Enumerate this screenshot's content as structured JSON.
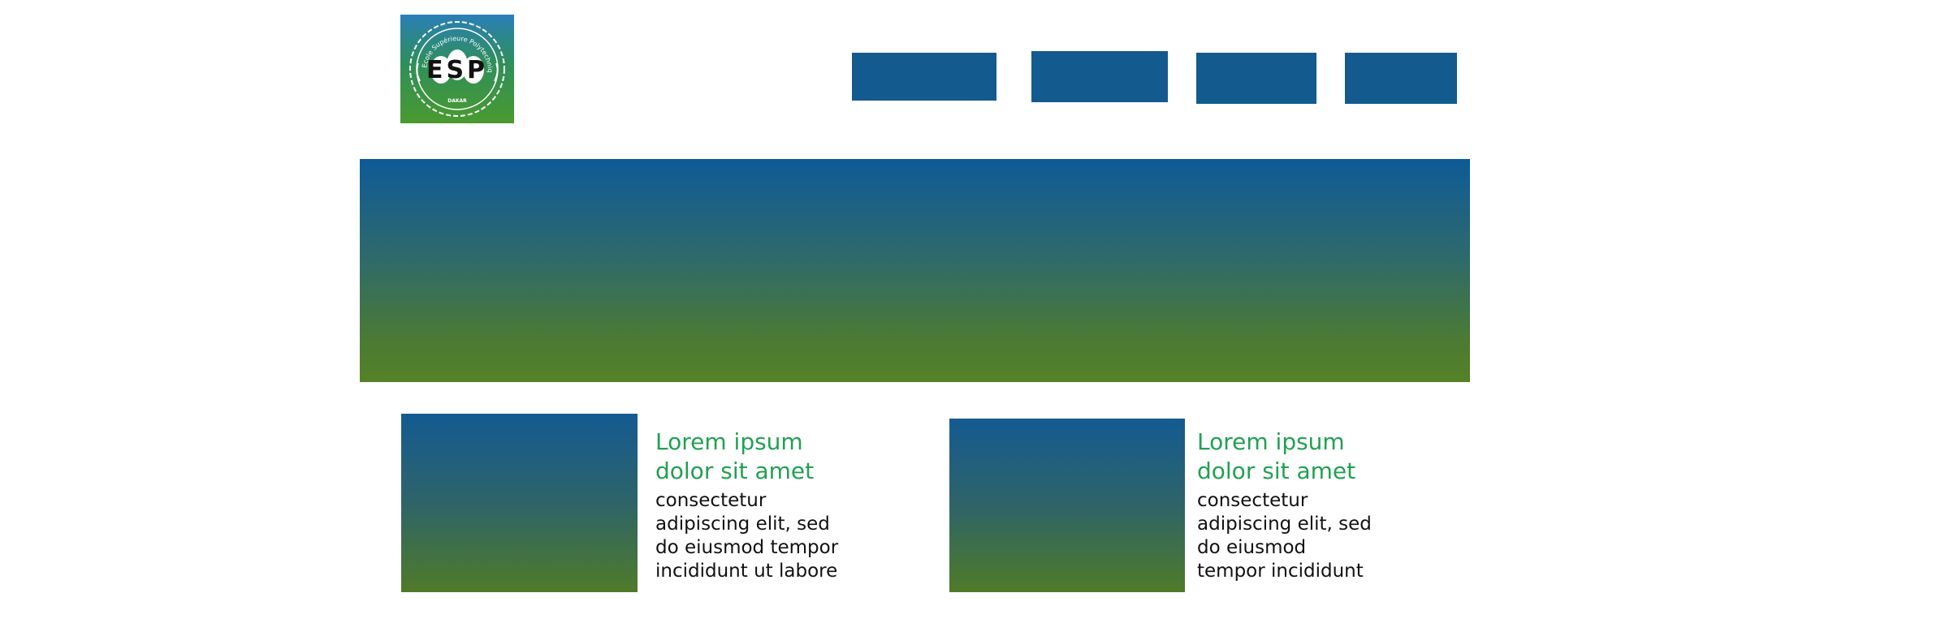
{
  "logo": {
    "letters": "ESP",
    "arc_text": "Ecole Supérieure Polytechnique",
    "city": "DAKAR"
  },
  "nav": {
    "items": [
      {
        "label": ""
      },
      {
        "label": ""
      },
      {
        "label": ""
      },
      {
        "label": ""
      }
    ]
  },
  "cards": [
    {
      "title": "Lorem ipsum\ndolor sit amet",
      "body": " consectetur\nadipiscing elit, sed\ndo eiusmod tempor\nincididunt ut labore"
    },
    {
      "title": "Lorem ipsum\ndolor sit amet",
      "body": " consectetur\nadipiscing elit, sed\ndo eiusmod\ntempor incididunt"
    }
  ],
  "colors": {
    "nav_blue": "#135a8e",
    "title_green": "#22a052",
    "gradient_top": "#0e5a98",
    "gradient_bottom": "#558226"
  }
}
